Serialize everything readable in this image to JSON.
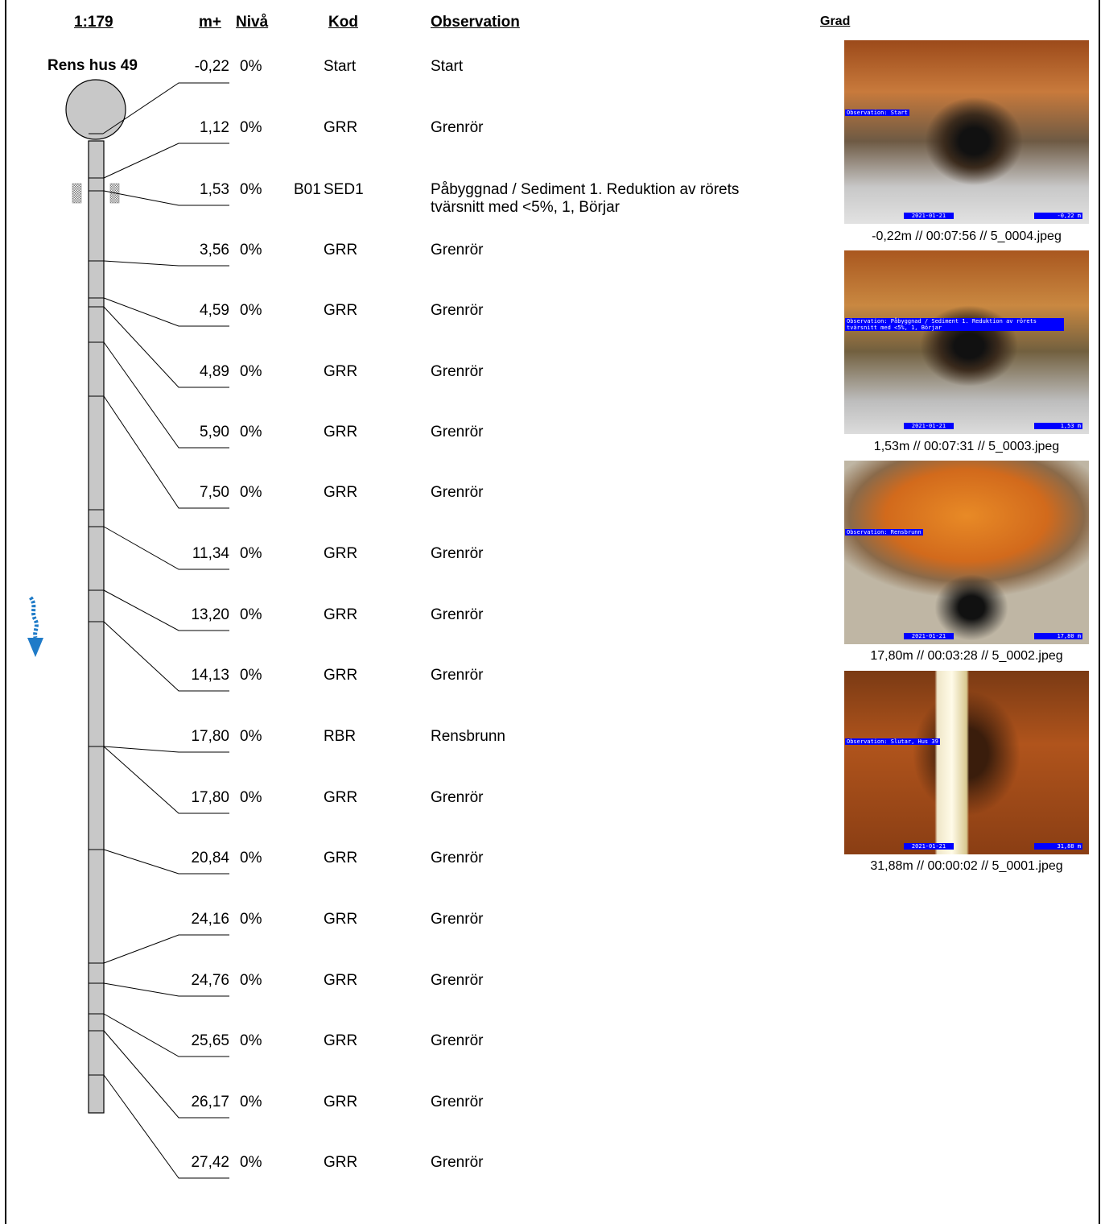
{
  "header": {
    "scale": "1:179",
    "distance": "m+",
    "level": "Nivå",
    "code": "Kod",
    "observation": "Observation",
    "grade": "Grad"
  },
  "station": "Rens hus 49",
  "rows": [
    {
      "distance": "-0,22",
      "level": "0%",
      "clock": "",
      "code": "Start",
      "observation": "Start"
    },
    {
      "distance": "1,12",
      "level": "0%",
      "clock": "",
      "code": "GRR",
      "observation": "Grenrör"
    },
    {
      "distance": "1,53",
      "level": "0%",
      "clock": "B01",
      "code": "SED1",
      "observation": "Påbyggnad / Sediment 1. Reduktion av rörets tvärsnitt med <5%, 1, Börjar"
    },
    {
      "distance": "3,56",
      "level": "0%",
      "clock": "",
      "code": "GRR",
      "observation": "Grenrör"
    },
    {
      "distance": "4,59",
      "level": "0%",
      "clock": "",
      "code": "GRR",
      "observation": "Grenrör"
    },
    {
      "distance": "4,89",
      "level": "0%",
      "clock": "",
      "code": "GRR",
      "observation": "Grenrör"
    },
    {
      "distance": "5,90",
      "level": "0%",
      "clock": "",
      "code": "GRR",
      "observation": "Grenrör"
    },
    {
      "distance": "7,50",
      "level": "0%",
      "clock": "",
      "code": "GRR",
      "observation": "Grenrör"
    },
    {
      "distance": "11,34",
      "level": "0%",
      "clock": "",
      "code": "GRR",
      "observation": "Grenrör"
    },
    {
      "distance": "13,20",
      "level": "0%",
      "clock": "",
      "code": "GRR",
      "observation": "Grenrör"
    },
    {
      "distance": "14,13",
      "level": "0%",
      "clock": "",
      "code": "GRR",
      "observation": "Grenrör"
    },
    {
      "distance": "17,80",
      "level": "0%",
      "clock": "",
      "code": "RBR",
      "observation": "Rensbrunn"
    },
    {
      "distance": "17,80",
      "level": "0%",
      "clock": "",
      "code": "GRR",
      "observation": "Grenrör"
    },
    {
      "distance": "20,84",
      "level": "0%",
      "clock": "",
      "code": "GRR",
      "observation": "Grenrör"
    },
    {
      "distance": "24,16",
      "level": "0%",
      "clock": "",
      "code": "GRR",
      "observation": "Grenrör"
    },
    {
      "distance": "24,76",
      "level": "0%",
      "clock": "",
      "code": "GRR",
      "observation": "Grenrör"
    },
    {
      "distance": "25,65",
      "level": "0%",
      "clock": "",
      "code": "GRR",
      "observation": "Grenrör"
    },
    {
      "distance": "26,17",
      "level": "0%",
      "clock": "",
      "code": "GRR",
      "observation": "Grenrör"
    },
    {
      "distance": "27,42",
      "level": "0%",
      "clock": "",
      "code": "GRR",
      "observation": "Grenrör"
    }
  ],
  "photos": [
    {
      "overlay": "Observation: Start",
      "date": "2021-01-21",
      "meter": "-0,22 m",
      "caption": "-0,22m // 00:07:56 // 5_0004.jpeg"
    },
    {
      "overlay": "Observation: Påbyggnad / Sediment 1. Reduktion av rörets tvärsnitt med <5%,  1,  Börjar",
      "date": "2021-01-21",
      "meter": "1,53 m",
      "caption": "1,53m // 00:07:31 // 5_0003.jpeg"
    },
    {
      "overlay": "Observation: Rensbrunn",
      "date": "2021-01-21",
      "meter": "17,80 m",
      "caption": "17,80m // 00:03:28 // 5_0002.jpeg"
    },
    {
      "overlay": "Observation: Slutar,  Hus 39",
      "date": "2021-01-21",
      "meter": "31,88 m",
      "caption": "31,88m // 00:00:02 // 5_0001.jpeg"
    }
  ],
  "colors": {
    "pipe": "#c8c8c8",
    "flow_arrow": "#1f7bc8",
    "overlay_bg": "#0000ff"
  }
}
